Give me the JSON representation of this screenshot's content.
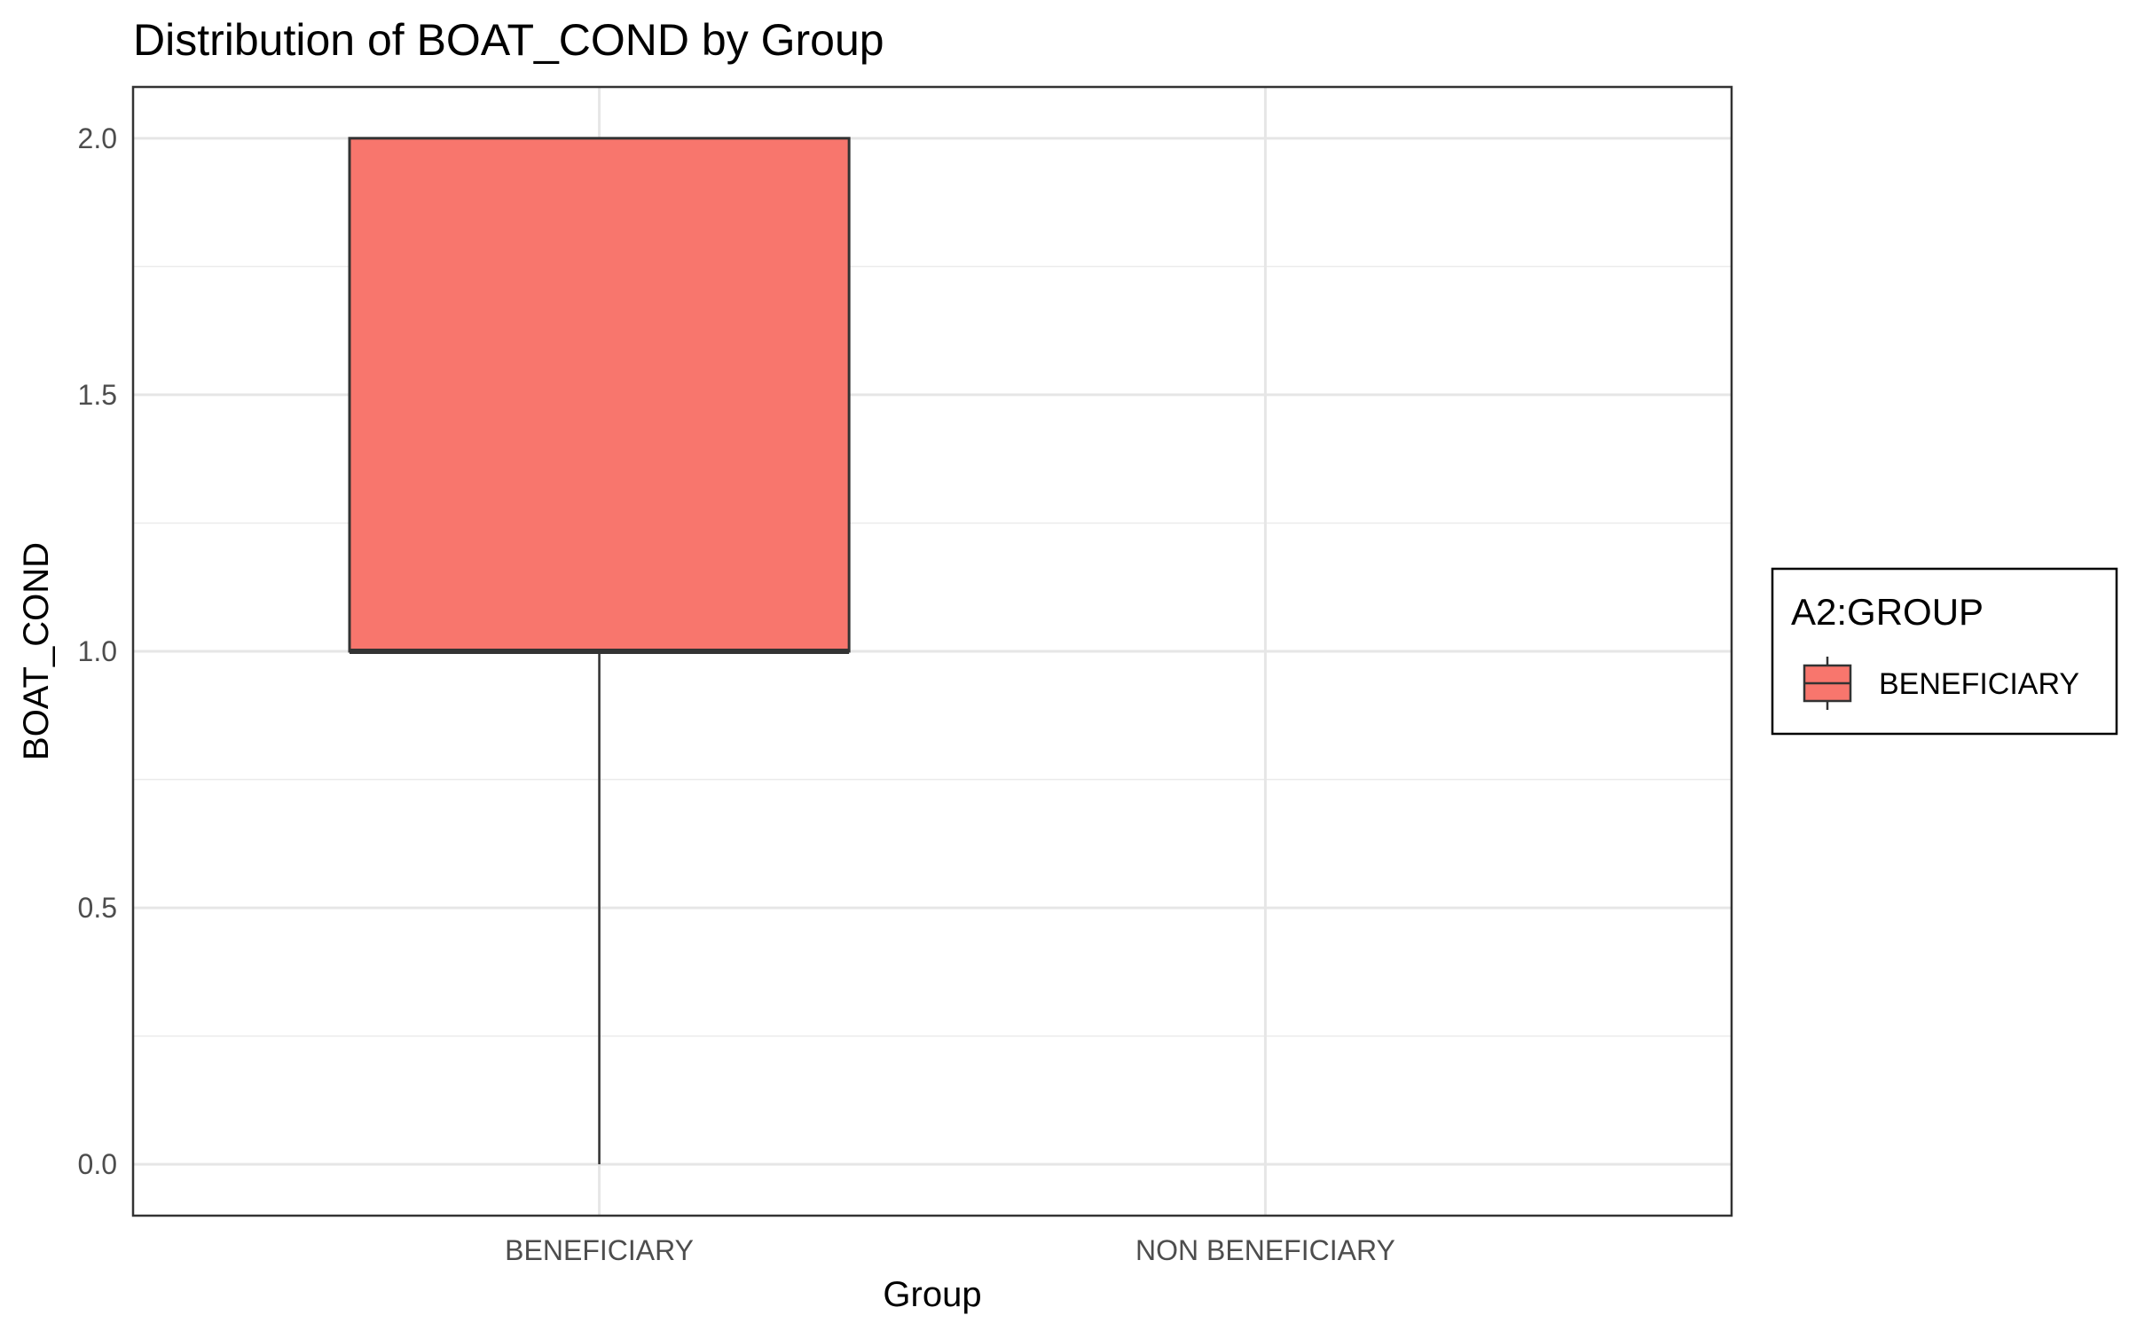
{
  "chart_data": {
    "type": "box",
    "title": "Distribution of BOAT_COND by Group",
    "xlabel": "Group",
    "ylabel": "BOAT_COND",
    "categories": [
      "BENEFICIARY",
      "NON BENEFICIARY"
    ],
    "ylim": [
      -0.1,
      2.1
    ],
    "yticks": [
      0.0,
      0.5,
      1.0,
      1.5,
      2.0
    ],
    "ytick_labels": [
      "0.0",
      "0.5",
      "1.0",
      "1.5",
      "2.0"
    ],
    "grid": true,
    "legend": {
      "title": "A2:GROUP",
      "position": "right",
      "entries": [
        {
          "label": "BENEFICIARY",
          "color": "#F8766D"
        }
      ]
    },
    "boxes": [
      {
        "category": "BENEFICIARY",
        "min": 0.0,
        "q1": 1.0,
        "median": 1.0,
        "q3": 2.0,
        "max": 2.0,
        "color": "#F8766D"
      }
    ]
  }
}
